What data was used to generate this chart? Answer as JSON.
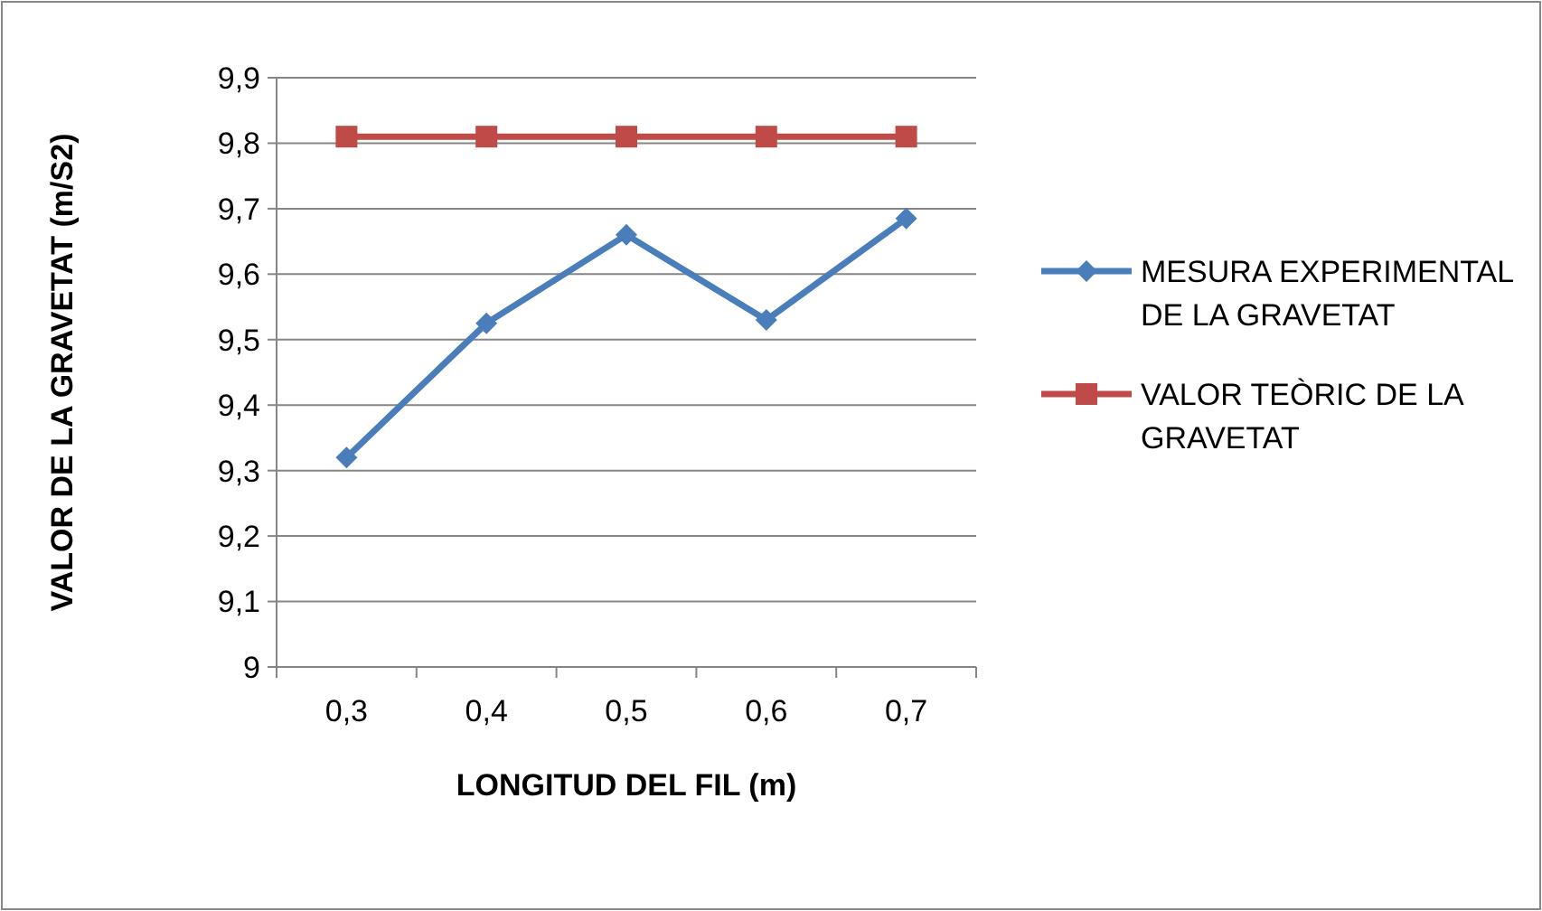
{
  "chart_data": {
    "type": "line",
    "xlabel": "LONGITUD DEL FIL (m)",
    "ylabel": "VALOR DE LA GRAVETAT (m/S2)",
    "categories": [
      "0,3",
      "0,4",
      "0,5",
      "0,6",
      "0,7"
    ],
    "series": [
      {
        "name": "MESURA EXPERIMENTAL DE LA GRAVETAT",
        "color": "#4a7ebb",
        "marker": "diamond",
        "values": [
          9.32,
          9.525,
          9.66,
          9.53,
          9.685
        ]
      },
      {
        "name": "VALOR TEÒRIC DE LA GRAVETAT",
        "color": "#be4b48",
        "marker": "square",
        "values": [
          9.81,
          9.81,
          9.81,
          9.81,
          9.81
        ]
      }
    ],
    "ylim": [
      9,
      9.9
    ],
    "yticks": [
      9,
      {
        "value": 9.1,
        "label": "9,1"
      },
      {
        "value": 9.2,
        "label": "9,2"
      },
      {
        "value": 9.3,
        "label": "9,3"
      },
      {
        "value": 9.4,
        "label": "9,4"
      },
      {
        "value": 9.5,
        "label": "9,5"
      },
      {
        "value": 9.6,
        "label": "9,6"
      },
      {
        "value": 9.7,
        "label": "9,7"
      },
      {
        "value": 9.8,
        "label": "9,8"
      },
      {
        "value": 9.9,
        "label": "9,9"
      }
    ],
    "grid": "y",
    "legend": "right",
    "line_style": "solid"
  }
}
